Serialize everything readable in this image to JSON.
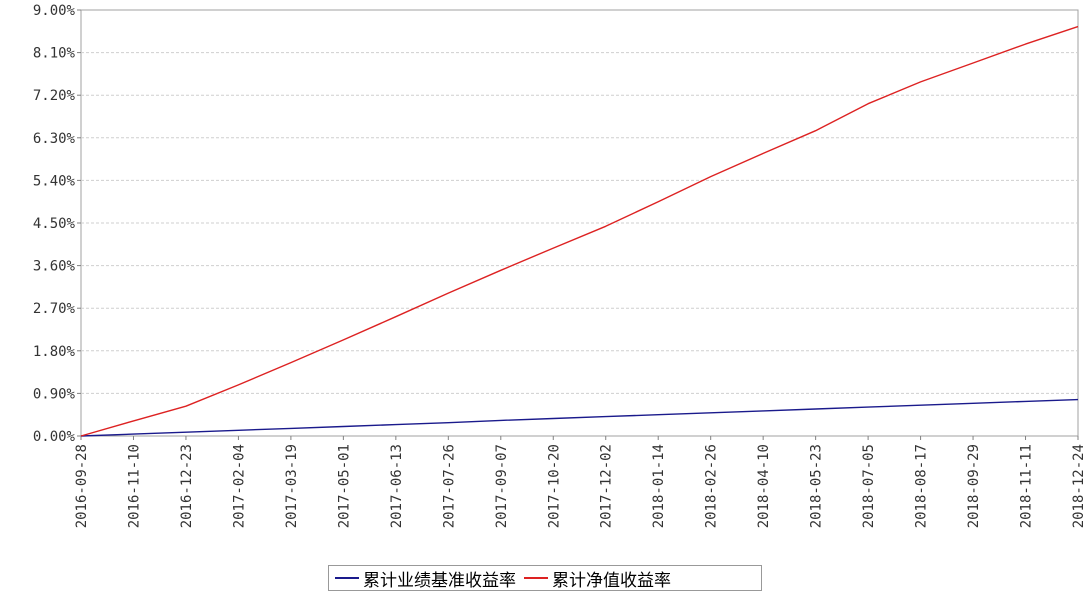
{
  "chart_data": {
    "type": "line",
    "title": "",
    "xlabel": "",
    "ylabel": "",
    "x_ticks": [
      "2016-09-28",
      "2016-11-10",
      "2016-12-23",
      "2017-02-04",
      "2017-03-19",
      "2017-05-01",
      "2017-06-13",
      "2017-07-26",
      "2017-09-07",
      "2017-10-20",
      "2017-12-02",
      "2018-01-14",
      "2018-02-26",
      "2018-04-10",
      "2018-05-23",
      "2018-07-05",
      "2018-08-17",
      "2018-09-29",
      "2018-11-11",
      "2018-12-24"
    ],
    "y_ticks": [
      "0.00%",
      "0.90%",
      "1.80%",
      "2.70%",
      "3.60%",
      "4.50%",
      "5.40%",
      "6.30%",
      "7.20%",
      "8.10%",
      "9.00%"
    ],
    "ylim": [
      0,
      9.0
    ],
    "y_unit": "%",
    "grid": true,
    "legend_position": "bottom-center",
    "series": [
      {
        "name": "累计业绩基准收益率",
        "color": "#1a1a8c",
        "x": [
          "2016-09-28",
          "2016-11-10",
          "2016-12-23",
          "2017-02-04",
          "2017-03-19",
          "2017-05-01",
          "2017-06-13",
          "2017-07-26",
          "2017-09-07",
          "2017-10-20",
          "2017-12-02",
          "2018-01-14",
          "2018-02-26",
          "2018-04-10",
          "2018-05-23",
          "2018-07-05",
          "2018-08-17",
          "2018-09-29",
          "2018-11-11",
          "2018-12-24"
        ],
        "values": [
          0.0,
          0.04,
          0.08,
          0.12,
          0.16,
          0.2,
          0.24,
          0.28,
          0.33,
          0.37,
          0.41,
          0.45,
          0.49,
          0.53,
          0.57,
          0.61,
          0.65,
          0.69,
          0.73,
          0.77
        ]
      },
      {
        "name": "累计净值收益率",
        "color": "#dd2222",
        "x": [
          "2016-09-28",
          "2016-11-10",
          "2016-12-23",
          "2017-02-04",
          "2017-03-19",
          "2017-05-01",
          "2017-06-13",
          "2017-07-26",
          "2017-09-07",
          "2017-10-20",
          "2017-12-02",
          "2018-01-14",
          "2018-02-26",
          "2018-04-10",
          "2018-05-23",
          "2018-07-05",
          "2018-08-17",
          "2018-09-29",
          "2018-11-11",
          "2018-12-24"
        ],
        "values": [
          0.0,
          0.32,
          0.63,
          1.08,
          1.55,
          2.03,
          2.52,
          3.02,
          3.5,
          3.97,
          4.43,
          4.95,
          5.48,
          5.97,
          6.45,
          7.02,
          7.48,
          7.88,
          8.28,
          8.65
        ]
      }
    ]
  }
}
